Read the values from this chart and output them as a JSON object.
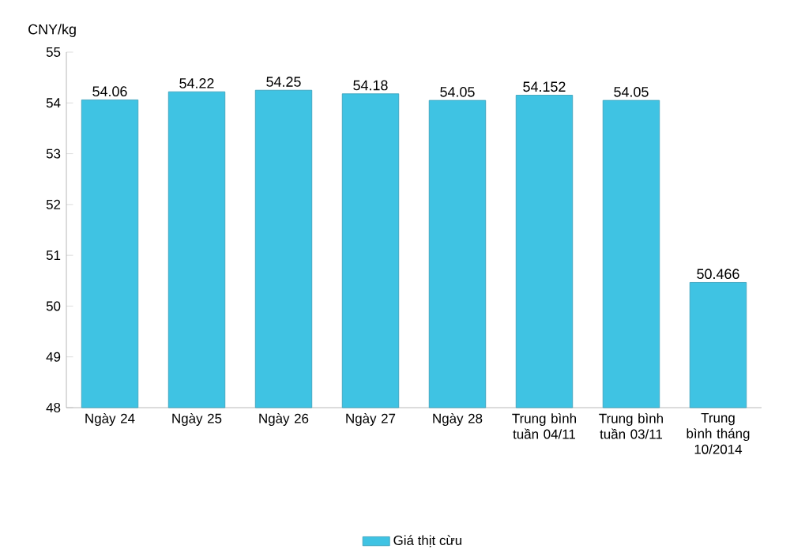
{
  "chart_data": {
    "type": "bar",
    "ylabel": "CNY/kg",
    "categories": [
      "Ngày 24",
      "Ngày 25",
      "Ngày 26",
      "Ngày 27",
      "Ngày 28",
      "Trung bình tuần 04/11",
      "Trung bình tuần 03/11",
      "Trung bình tháng 10/2014"
    ],
    "series": [
      {
        "name": "Giá thịt cừu",
        "color": "#3fc3e3",
        "values": [
          54.06,
          54.22,
          54.25,
          54.18,
          54.05,
          54.152,
          54.05,
          50.466
        ]
      }
    ],
    "value_labels": [
      "54.06",
      "54.22",
      "54.25",
      "54.18",
      "54.05",
      "54.152",
      "54.05",
      "50.466"
    ],
    "ylim": [
      48,
      55
    ],
    "yticks": [
      48,
      49,
      50,
      51,
      52,
      53,
      54,
      55
    ],
    "legend": "bottom",
    "grid": false
  }
}
